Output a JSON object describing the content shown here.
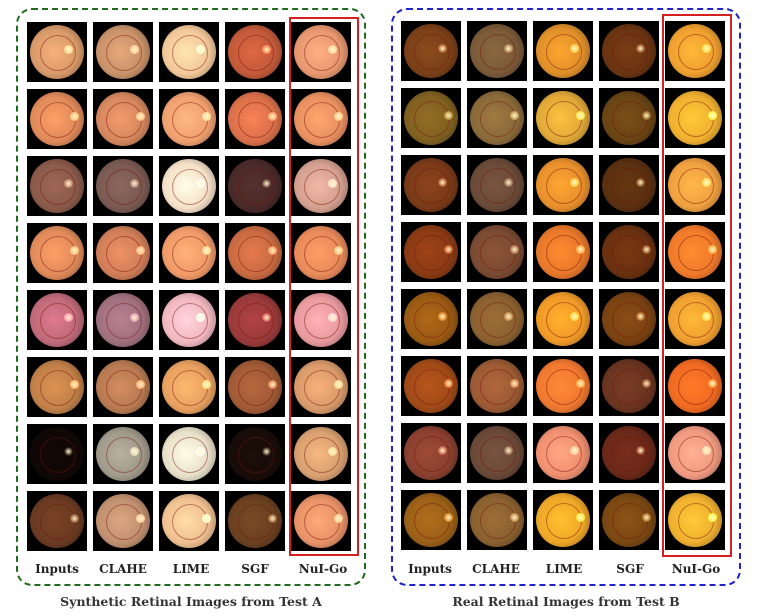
{
  "panel_a": {
    "columns": [
      "Inputs",
      "CLAHE",
      "LIME",
      "SGF",
      "NuI-Go"
    ],
    "caption": "Synthetic Retinal Images from Test A",
    "accent": "#1f6b1f",
    "rows": [
      [
        "#d89a6a",
        "#c9926a",
        "#f2c89a",
        "#c25a3a",
        "#e89870"
      ],
      [
        "#e08a5a",
        "#d4875e",
        "#f0a070",
        "#d9704a",
        "#e89060"
      ],
      [
        "#8a5a4a",
        "#7a5a52",
        "#f5e0c8",
        "#4a2a28",
        "#d4a090"
      ],
      [
        "#e08a5a",
        "#d07e58",
        "#f09a68",
        "#c86a42",
        "#e88a5a"
      ],
      [
        "#c06a7a",
        "#a0707e",
        "#f2b8c0",
        "#9a3a3a",
        "#e89a9e"
      ],
      [
        "#c08048",
        "#b87a52",
        "#e8a060",
        "#a05a36",
        "#d89a6a"
      ],
      [
        "#100806",
        "#a09a8a",
        "#e8e0c8",
        "#180c08",
        "#d8a070"
      ],
      [
        "#6a3a22",
        "#c09070",
        "#f0c090",
        "#6a4020",
        "#e89268"
      ]
    ]
  },
  "panel_b": {
    "columns": [
      "Inputs",
      "CLAHE",
      "LIME",
      "SGF",
      "NuI-Go"
    ],
    "caption": "Real Retinal Images from Test B",
    "accent": "#2020cc",
    "rows": [
      [
        "#7a4018",
        "#7a5a38",
        "#e0902a",
        "#6a3412",
        "#f0a030"
      ],
      [
        "#806020",
        "#8a6a3a",
        "#e0a838",
        "#6a4414",
        "#f0b030"
      ],
      [
        "#7a3a18",
        "#6a4a38",
        "#e8902c",
        "#5a3010",
        "#f0a040"
      ],
      [
        "#8a3a14",
        "#7a4a32",
        "#e8782a",
        "#6a3010",
        "#f07a2a"
      ],
      [
        "#9a5a14",
        "#8a6030",
        "#f09a28",
        "#7a4212",
        "#f0a030"
      ],
      [
        "#a04a18",
        "#9a5a34",
        "#f07830",
        "#6a3420",
        "#f06a22"
      ],
      [
        "#8a4030",
        "#6a4838",
        "#f09070",
        "#6a2818",
        "#f09a80"
      ],
      [
        "#9a6018",
        "#8a6030",
        "#f0a828",
        "#7a4812",
        "#f0b030"
      ]
    ]
  }
}
